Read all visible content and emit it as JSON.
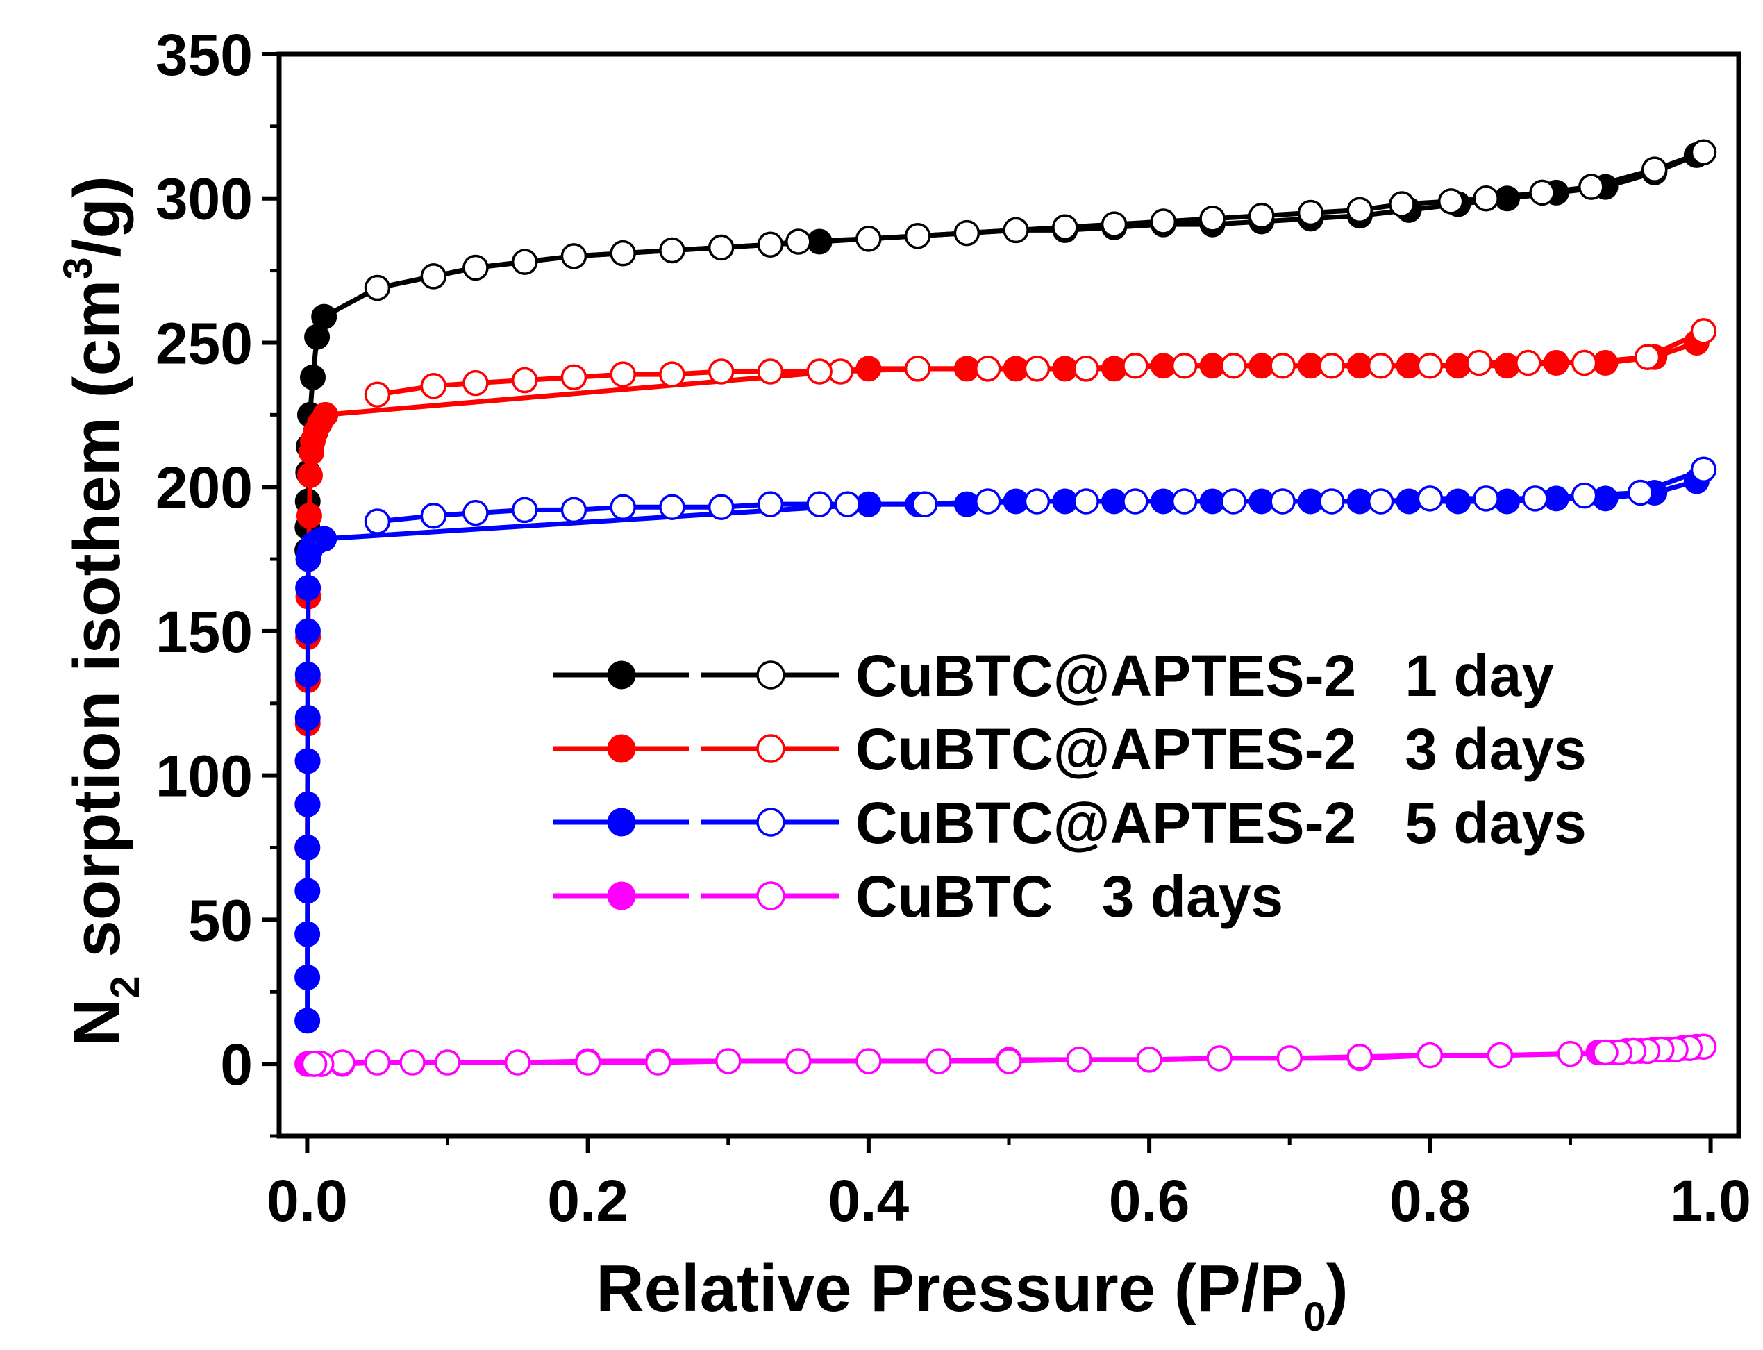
{
  "chart_data": {
    "type": "line",
    "title": "",
    "xlabel": {
      "main": "Relative Pressure (P/P",
      "sub": "0",
      "tail": ")"
    },
    "ylabel": {
      "pre": "N",
      "sub": "2",
      "mid": " sorption isothem (cm",
      "sup": "3",
      "tail": "/g)"
    },
    "xlim": [
      -0.02,
      1.02
    ],
    "ylim": [
      -25,
      350
    ],
    "xticks": [
      0.0,
      0.2,
      0.4,
      0.6,
      0.8,
      1.0
    ],
    "xtick_labels": [
      "0.0",
      "0.2",
      "0.4",
      "0.6",
      "0.8",
      "1.0"
    ],
    "yticks": [
      0,
      50,
      100,
      150,
      200,
      250,
      300,
      350
    ],
    "ytick_labels": [
      "0",
      "50",
      "100",
      "150",
      "200",
      "250",
      "300",
      "350"
    ],
    "grid": false,
    "legend": {
      "position": "center-right"
    },
    "series": [
      {
        "name": "CuBTC@APTES-2   1 day",
        "color": "#000000",
        "adsorption": {
          "x": [
            0.0001,
            0.0002,
            0.0004,
            0.0007,
            0.001,
            0.002,
            0.004,
            0.007,
            0.012,
            0.05,
            0.09,
            0.12,
            0.155,
            0.19,
            0.225,
            0.26,
            0.295,
            0.33,
            0.365,
            0.4,
            0.435,
            0.47,
            0.505,
            0.54,
            0.575,
            0.61,
            0.645,
            0.68,
            0.715,
            0.75,
            0.785,
            0.82,
            0.855,
            0.89,
            0.925,
            0.96,
            0.99
          ],
          "y": [
            178,
            186,
            195,
            205,
            214,
            225,
            238,
            252,
            259,
            269,
            273,
            276,
            278,
            280,
            281,
            282,
            283,
            284,
            285,
            286,
            287,
            288,
            289,
            289,
            290,
            291,
            291,
            292,
            293,
            294,
            296,
            298,
            300,
            302,
            304,
            309,
            315
          ]
        },
        "desorption": {
          "x": [
            0.995,
            0.96,
            0.915,
            0.88,
            0.84,
            0.815,
            0.78,
            0.75,
            0.715,
            0.68,
            0.645,
            0.61,
            0.575,
            0.54,
            0.505,
            0.47,
            0.435,
            0.4,
            0.35,
            0.33,
            0.295,
            0.26,
            0.225,
            0.19,
            0.155,
            0.12,
            0.09,
            0.05
          ],
          "y": [
            316,
            310,
            304,
            302,
            300,
            299,
            298,
            296,
            295,
            294,
            293,
            292,
            291,
            290,
            289,
            288,
            287,
            286,
            285,
            284,
            283,
            282,
            281,
            280,
            278,
            276,
            273,
            269
          ]
        }
      },
      {
        "name": "CuBTC@APTES-2   3 days",
        "color": "#ff0000",
        "adsorption": {
          "x": [
            0.0001,
            0.0002,
            0.0003,
            0.0004,
            0.0005,
            0.0006,
            0.0008,
            0.001,
            0.0015,
            0.002,
            0.003,
            0.004,
            0.006,
            0.009,
            0.013,
            0.4,
            0.435,
            0.47,
            0.505,
            0.54,
            0.575,
            0.61,
            0.645,
            0.68,
            0.715,
            0.75,
            0.785,
            0.82,
            0.855,
            0.89,
            0.925,
            0.96,
            0.99
          ],
          "y": [
            75,
            90,
            105,
            118,
            133,
            148,
            162,
            176,
            190,
            204,
            212,
            216,
            219,
            222,
            225,
            241,
            241,
            241,
            241,
            241,
            241,
            242,
            242,
            242,
            242,
            242,
            242,
            242,
            242,
            243,
            243,
            245,
            250
          ]
        },
        "desorption": {
          "x": [
            0.995,
            0.955,
            0.91,
            0.87,
            0.835,
            0.8,
            0.765,
            0.73,
            0.695,
            0.66,
            0.625,
            0.59,
            0.555,
            0.52,
            0.485,
            0.435,
            0.38,
            0.365,
            0.33,
            0.295,
            0.26,
            0.225,
            0.19,
            0.155,
            0.12,
            0.09,
            0.05
          ],
          "y": [
            254,
            245,
            243,
            243,
            243,
            242,
            242,
            242,
            242,
            242,
            242,
            242,
            241,
            241,
            241,
            241,
            240,
            240,
            240,
            240,
            239,
            239,
            238,
            237,
            236,
            235,
            232
          ]
        }
      },
      {
        "name": "CuBTC@APTES-2   5 days",
        "color": "#0000ff",
        "adsorption": {
          "x": [
            0.0001,
            0.0001,
            0.0001,
            0.0002,
            0.0002,
            0.0003,
            0.0003,
            0.0004,
            0.0004,
            0.0005,
            0.0006,
            0.0008,
            0.001,
            0.002,
            0.004,
            0.007,
            0.012,
            0.4,
            0.435,
            0.47,
            0.505,
            0.54,
            0.575,
            0.61,
            0.645,
            0.68,
            0.715,
            0.75,
            0.785,
            0.82,
            0.855,
            0.89,
            0.925,
            0.96,
            0.99
          ],
          "y": [
            15,
            30,
            45,
            60,
            75,
            90,
            105,
            120,
            135,
            150,
            165,
            175,
            176,
            178,
            180,
            181,
            182,
            194,
            194,
            194,
            195,
            195,
            195,
            195,
            195,
            195,
            195,
            195,
            195,
            195,
            195,
            196,
            196,
            198,
            202
          ]
        },
        "desorption": {
          "x": [
            0.995,
            0.95,
            0.91,
            0.875,
            0.84,
            0.8,
            0.765,
            0.73,
            0.695,
            0.66,
            0.625,
            0.59,
            0.555,
            0.52,
            0.485,
            0.44,
            0.385,
            0.365,
            0.33,
            0.295,
            0.26,
            0.225,
            0.19,
            0.155,
            0.12,
            0.09,
            0.05
          ],
          "y": [
            206,
            198,
            197,
            196,
            196,
            196,
            195,
            195,
            195,
            195,
            195,
            195,
            195,
            195,
            195,
            194,
            194,
            194,
            194,
            193,
            193,
            193,
            192,
            192,
            191,
            190,
            188
          ]
        }
      },
      {
        "name": "CuBTC   3 days",
        "color": "#ff00ff",
        "adsorption": {
          "x": [
            0.0001,
            0.002,
            0.005,
            0.01,
            0.025,
            0.05,
            0.075,
            0.1,
            0.15,
            0.2,
            0.25,
            0.3,
            0.35,
            0.4,
            0.45,
            0.5,
            0.55,
            0.6,
            0.65,
            0.7,
            0.75,
            0.8,
            0.85,
            0.9,
            0.92,
            0.93,
            0.94,
            0.95,
            0.96,
            0.97,
            0.98,
            0.99
          ],
          "y": [
            0,
            0,
            0,
            0,
            0,
            0.5,
            0.5,
            0.5,
            0.5,
            1,
            1,
            1,
            1,
            1,
            1,
            1.5,
            1.5,
            1.5,
            2,
            2,
            2,
            3,
            3,
            3.5,
            4,
            4,
            4.5,
            4.5,
            5,
            5,
            5.5,
            6
          ]
        },
        "desorption": {
          "x": [
            0.995,
            0.985,
            0.975,
            0.965,
            0.955,
            0.945,
            0.935,
            0.925,
            0.9,
            0.85,
            0.8,
            0.75,
            0.7,
            0.65,
            0.6,
            0.55,
            0.5,
            0.45,
            0.4,
            0.35,
            0.3,
            0.25,
            0.2,
            0.15,
            0.1,
            0.075,
            0.05,
            0.025,
            0.01,
            0.005
          ],
          "y": [
            6,
            5.5,
            5,
            5,
            4.5,
            4.5,
            4,
            4,
            3.5,
            3,
            3,
            2.5,
            2,
            2,
            1.5,
            1.5,
            1,
            1,
            1,
            1,
            1,
            0.5,
            0.5,
            0.5,
            0.5,
            0.5,
            0.5,
            0.5,
            0,
            0
          ]
        }
      }
    ]
  }
}
